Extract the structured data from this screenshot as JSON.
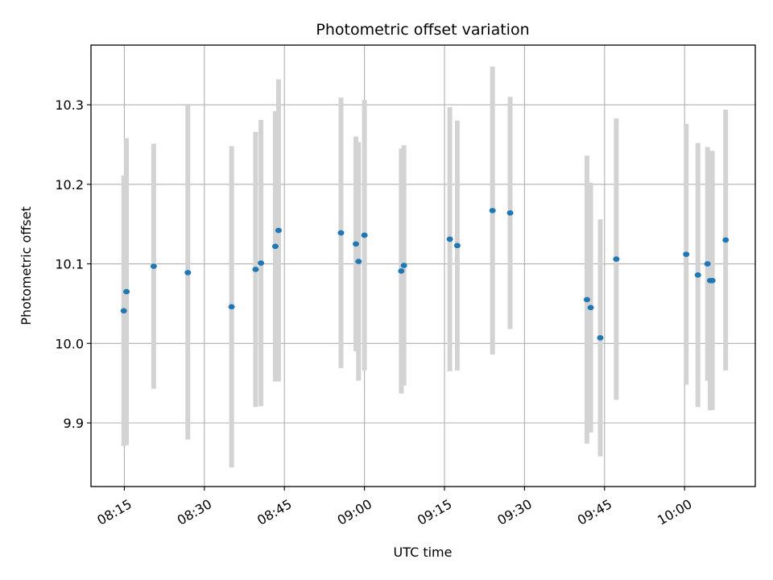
{
  "chart_data": {
    "type": "scatter",
    "title": "Photometric offset variation",
    "xlabel": "UTC time",
    "ylabel": "Photometric offset",
    "x_ticks": [
      "08:15",
      "08:30",
      "08:45",
      "09:00",
      "09:15",
      "09:30",
      "09:45",
      "10:00"
    ],
    "x_tick_minutes": [
      495,
      510,
      525,
      540,
      555,
      570,
      585,
      600
    ],
    "xlim_minutes": [
      488.75,
      613.25
    ],
    "y_ticks": [
      "9.9",
      "10.0",
      "10.1",
      "10.2",
      "10.3"
    ],
    "y_tick_values": [
      9.9,
      10.0,
      10.1,
      10.2,
      10.3
    ],
    "ylim": [
      9.82,
      10.375
    ],
    "grid": true,
    "marker_color": "#1f77b4",
    "errorbar_color": "#d3d3d3",
    "points": [
      {
        "t": 494.9,
        "y": 10.041,
        "err": 0.17
      },
      {
        "t": 495.4,
        "y": 10.065,
        "err": 0.193
      },
      {
        "t": 500.5,
        "y": 10.097,
        "err": 0.154
      },
      {
        "t": 506.9,
        "y": 10.089,
        "err": 0.21
      },
      {
        "t": 515.1,
        "y": 10.046,
        "err": 0.202
      },
      {
        "t": 519.6,
        "y": 10.093,
        "err": 0.173
      },
      {
        "t": 520.6,
        "y": 10.101,
        "err": 0.18
      },
      {
        "t": 523.3,
        "y": 10.122,
        "err": 0.17
      },
      {
        "t": 523.9,
        "y": 10.142,
        "err": 0.19
      },
      {
        "t": 535.6,
        "y": 10.139,
        "err": 0.17
      },
      {
        "t": 538.4,
        "y": 10.125,
        "err": 0.135
      },
      {
        "t": 538.9,
        "y": 10.103,
        "err": 0.15
      },
      {
        "t": 540.0,
        "y": 10.136,
        "err": 0.17
      },
      {
        "t": 546.9,
        "y": 10.091,
        "err": 0.154
      },
      {
        "t": 547.4,
        "y": 10.098,
        "err": 0.151
      },
      {
        "t": 556.0,
        "y": 10.131,
        "err": 0.166
      },
      {
        "t": 557.4,
        "y": 10.123,
        "err": 0.157
      },
      {
        "t": 564.0,
        "y": 10.167,
        "err": 0.181
      },
      {
        "t": 567.3,
        "y": 10.164,
        "err": 0.146
      },
      {
        "t": 581.7,
        "y": 10.055,
        "err": 0.181
      },
      {
        "t": 582.4,
        "y": 10.045,
        "err": 0.157
      },
      {
        "t": 584.2,
        "y": 10.007,
        "err": 0.149
      },
      {
        "t": 587.2,
        "y": 10.106,
        "err": 0.177
      },
      {
        "t": 604.3,
        "y": 10.1,
        "err": 0.147
      },
      {
        "t": 604.8,
        "y": 10.079,
        "err": 0.163
      },
      {
        "t": 605.2,
        "y": 10.079,
        "err": 0.163
      },
      {
        "t": 600.3,
        "y": 10.112,
        "err": 0.164
      },
      {
        "t": 602.5,
        "y": 10.086,
        "err": 0.166
      },
      {
        "t": 607.7,
        "y": 10.13,
        "err": 0.164
      }
    ]
  }
}
